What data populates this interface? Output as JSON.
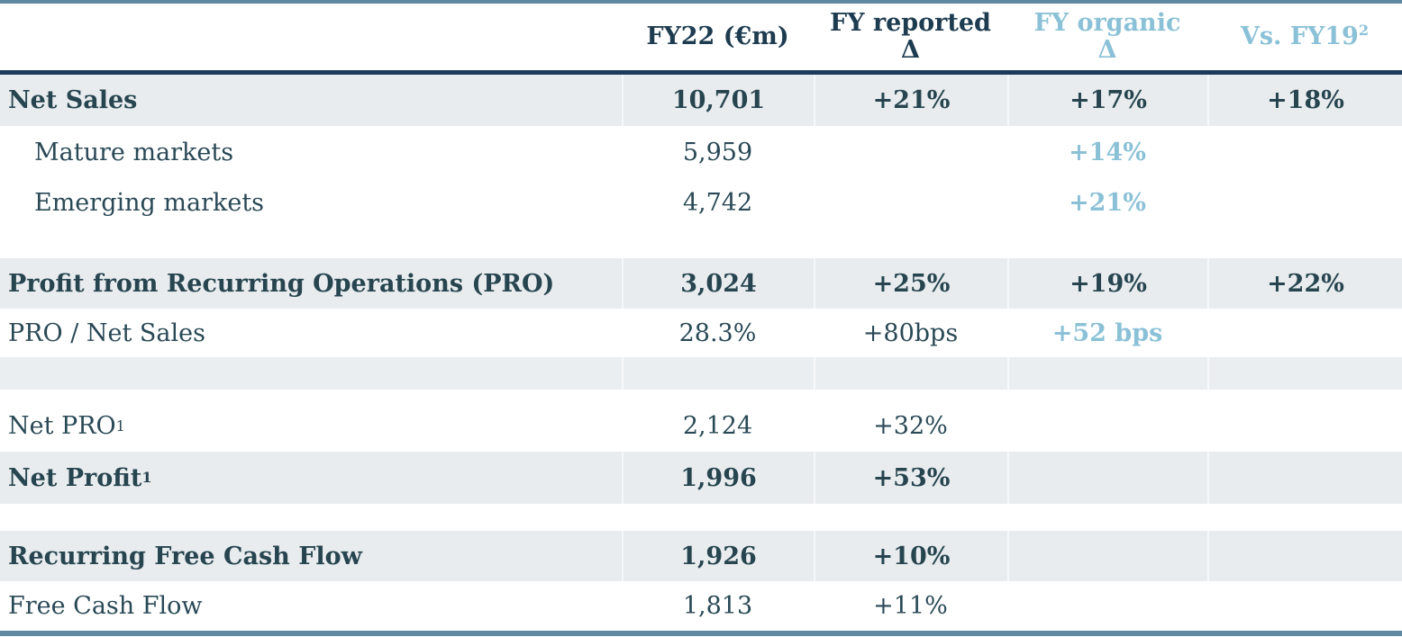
{
  "colors": {
    "bar_steel_blue": "#6089a3",
    "header_rule_navy": "#1c3a5c",
    "dark_text": "#27454f",
    "accent_light_blue": "#8bc1d7",
    "shaded_row_bg": "#e8ecef"
  },
  "header": {
    "col_fy22": "FY22 (€m)",
    "col_reported_line1": "FY reported",
    "col_reported_line2": "Δ",
    "col_organic_line1": "FY organic",
    "col_organic_line2": "Δ",
    "col_vs_label": "Vs. FY19",
    "col_vs_sup": "2"
  },
  "rows": [
    {
      "label": "Net Sales",
      "fy22": "10,701",
      "reported": "+21%",
      "organic": "+17%",
      "vs": "+18%"
    },
    {
      "label": "Mature markets",
      "fy22": "5,959",
      "reported": "",
      "organic": "+14%",
      "vs": ""
    },
    {
      "label": "Emerging markets",
      "fy22": "4,742",
      "reported": "",
      "organic": "+21%",
      "vs": ""
    },
    {
      "type": "spacer-white"
    },
    {
      "label": "Profit from Recurring Operations (PRO)",
      "fy22": "3,024",
      "reported": "+25%",
      "organic": "+19%",
      "vs": "+22%"
    },
    {
      "label": "PRO / Net Sales",
      "fy22": "28.3%",
      "reported": "+80bps",
      "organic": "+52 bps",
      "vs": ""
    },
    {
      "type": "spacer-shade"
    },
    {
      "type": "spacer-white"
    },
    {
      "label": "Net PRO",
      "sup": "1",
      "fy22": "2,124",
      "reported": "+32%",
      "organic": "",
      "vs": ""
    },
    {
      "label": "Net Profit",
      "sup": "1",
      "fy22": "1,996",
      "reported": "+53%",
      "organic": "",
      "vs": ""
    },
    {
      "type": "spacer-white"
    },
    {
      "label": "Recurring Free Cash Flow",
      "fy22": "1,926",
      "reported": "+10%",
      "organic": "",
      "vs": ""
    },
    {
      "label": "Free Cash Flow",
      "fy22": "1,813",
      "reported": "+11%",
      "organic": "",
      "vs": ""
    }
  ]
}
